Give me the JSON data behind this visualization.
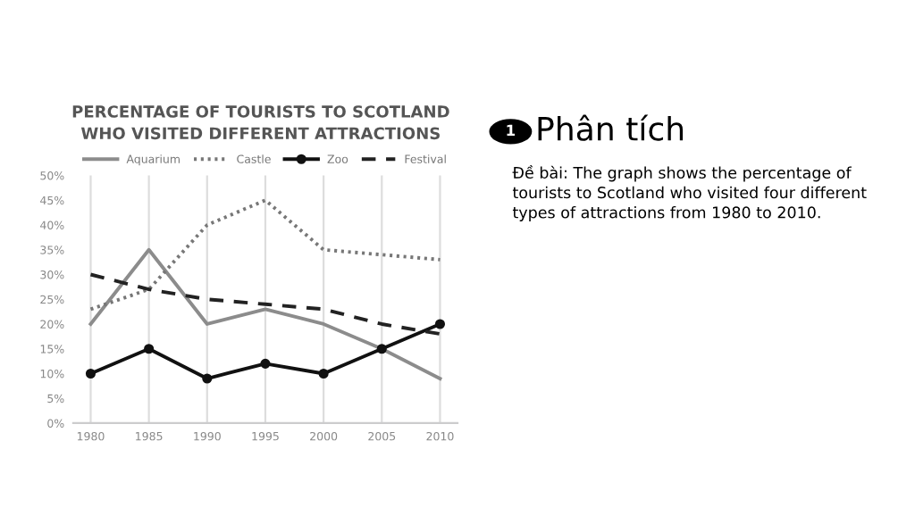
{
  "chart_data": {
    "type": "line",
    "title": "PERCENTAGE OF TOURISTS TO SCOTLAND\nWHO VISITED DIFFERENT ATTRACTIONS",
    "categories": [
      "1980",
      "1985",
      "1990",
      "1995",
      "2000",
      "2005",
      "2010"
    ],
    "series": [
      {
        "name": "Aquarium",
        "color": "#8c8c8c",
        "line_style": "solid",
        "marker": "none",
        "values": [
          20,
          35,
          20,
          23,
          20,
          15,
          9
        ]
      },
      {
        "name": "Castle",
        "color": "#777777",
        "line_style": "dotted",
        "marker": "none",
        "values": [
          23,
          27,
          40,
          45,
          35,
          34,
          33
        ]
      },
      {
        "name": "Zoo",
        "color": "#111111",
        "line_style": "solid",
        "marker": "circle",
        "values": [
          10,
          15,
          9,
          12,
          10,
          15,
          20
        ]
      },
      {
        "name": "Festival",
        "color": "#222222",
        "line_style": "dashed",
        "marker": "none",
        "values": [
          30,
          27,
          25,
          24,
          23,
          20,
          18
        ]
      }
    ],
    "ylim": [
      0,
      50
    ],
    "yticks": [
      {
        "value": 0,
        "label": "0%"
      },
      {
        "value": 5,
        "label": "5%"
      },
      {
        "value": 10,
        "label": "10%"
      },
      {
        "value": 15,
        "label": "15%"
      },
      {
        "value": 20,
        "label": "20%"
      },
      {
        "value": 25,
        "label": "25%"
      },
      {
        "value": 30,
        "label": "30%"
      },
      {
        "value": 35,
        "label": "35%"
      },
      {
        "value": 40,
        "label": "40%"
      },
      {
        "value": 45,
        "label": "45%"
      },
      {
        "value": 50,
        "label": "50%"
      }
    ],
    "grid": "x",
    "legend": "top",
    "annotations": [
      "1",
      "Phân tích",
      "Đề bài: The graph shows the percentage of\ntourists to Scotland who visited four different\ntypes of attractions from 1980 to 2010."
    ]
  }
}
